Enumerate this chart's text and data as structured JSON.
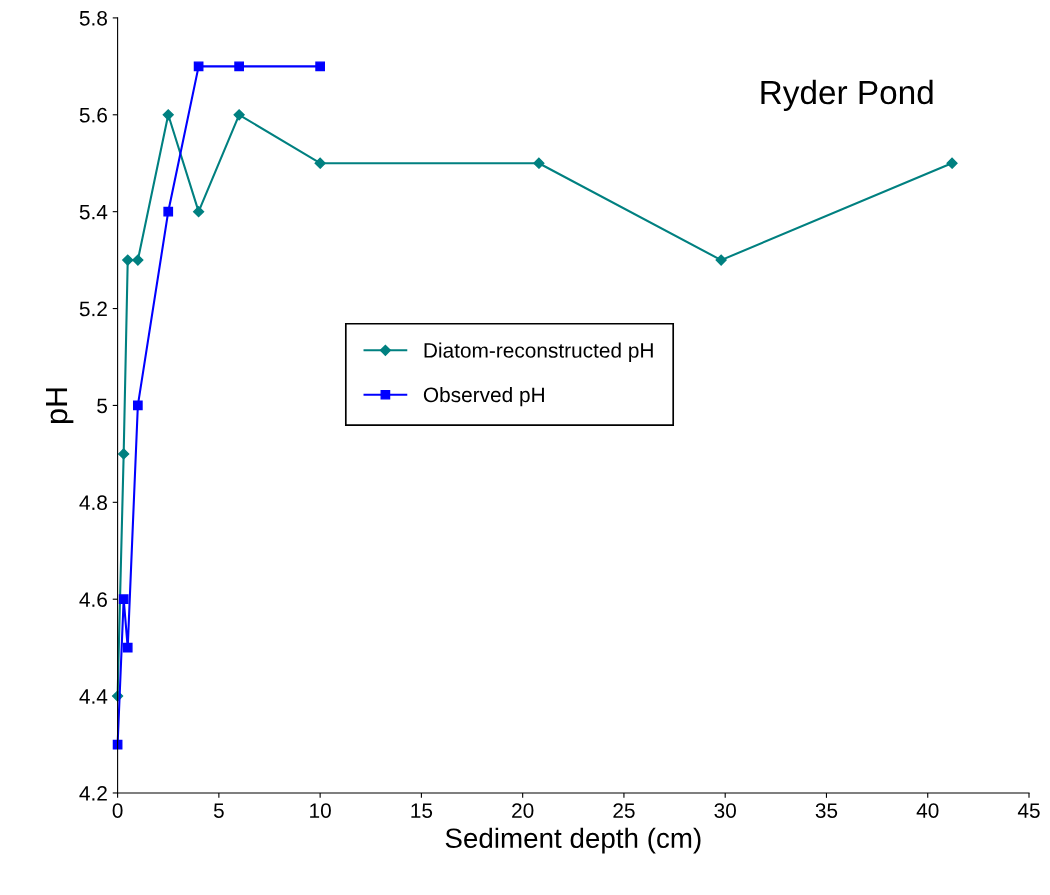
{
  "chart_data": {
    "type": "line",
    "title": "Ryder Pond",
    "xlabel": "Sediment depth (cm)",
    "ylabel": "pH",
    "xlim": [
      0,
      45
    ],
    "xticks": [
      0,
      5,
      10,
      15,
      20,
      25,
      30,
      35,
      40,
      45
    ],
    "ylim": [
      4.2,
      5.8
    ],
    "yticks": [
      4.2,
      4.4,
      4.6,
      4.8,
      5,
      5.2,
      5.4,
      5.6,
      5.8
    ],
    "grid": false,
    "legend": "center",
    "series": [
      {
        "name": "Diatom-reconstructed pH",
        "color": "#008080",
        "marker": "diamond",
        "x": [
          0,
          0.3,
          0.5,
          1,
          2.5,
          4,
          6,
          10,
          20.8,
          29.8,
          41.2
        ],
        "values": [
          4.4,
          4.9,
          5.3,
          5.3,
          5.6,
          5.4,
          5.6,
          5.5,
          5.5,
          5.3,
          5.5
        ]
      },
      {
        "name": "Observed pH",
        "color": "#0000ff",
        "marker": "square",
        "x": [
          0,
          0.3,
          0.5,
          1,
          2.5,
          4,
          6,
          10
        ],
        "values": [
          4.3,
          4.6,
          4.5,
          5.0,
          5.4,
          5.7,
          5.7,
          5.7
        ]
      }
    ]
  }
}
